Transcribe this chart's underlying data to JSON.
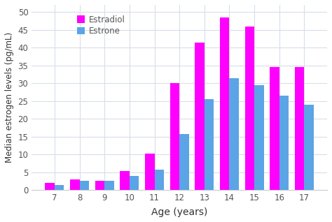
{
  "ages": [
    7,
    8,
    9,
    10,
    11,
    12,
    13,
    14,
    15,
    16,
    17
  ],
  "estradiol": [
    2.0,
    3.0,
    2.5,
    5.3,
    10.3,
    30.0,
    41.5,
    48.5,
    46.0,
    34.5,
    34.5
  ],
  "estrone": [
    1.5,
    2.5,
    2.5,
    4.0,
    5.8,
    15.8,
    25.5,
    31.5,
    29.5,
    26.5,
    24.0
  ],
  "estradiol_color": "#FF00FF",
  "estrone_color": "#5BA4E5",
  "xlabel": "Age (years)",
  "ylabel": "Median estrogen levels (pg/mL)",
  "legend_estradiol": "Estradiol",
  "legend_estrone": "Estrone",
  "ylim": [
    0,
    52
  ],
  "yticks": [
    0,
    5,
    10,
    15,
    20,
    25,
    30,
    35,
    40,
    45,
    50
  ],
  "background_color": "#FFFFFF",
  "grid_color": "#D8DDE8",
  "bar_width": 0.38
}
